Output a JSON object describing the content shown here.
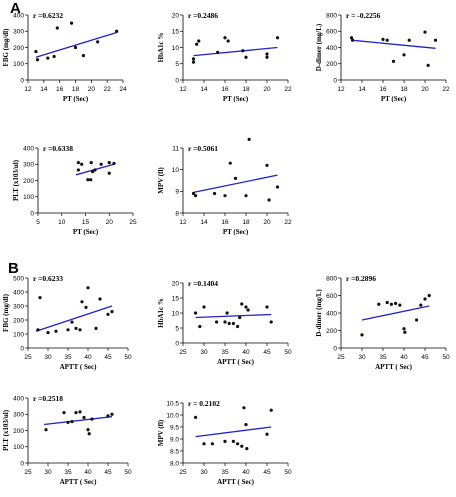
{
  "sections": [
    {
      "label": "A"
    },
    {
      "label": "B"
    }
  ],
  "style": {
    "line_color": "#2222cc",
    "point_color": "#111111",
    "axis_color": "#000000"
  },
  "chart_data": [
    {
      "type": "scatter",
      "section": "A",
      "r_label": "r =0.6232",
      "xlabel": "PT (Sec)",
      "ylabel": "FBG (mg/dl)",
      "xlim": [
        12,
        24
      ],
      "ylim": [
        0,
        400
      ],
      "xticks": [
        12,
        14,
        16,
        18,
        20,
        22,
        24
      ],
      "yticks": [
        0,
        100,
        200,
        300,
        400
      ],
      "points": [
        [
          13,
          175
        ],
        [
          13.2,
          125
        ],
        [
          14.5,
          135
        ],
        [
          15.3,
          145
        ],
        [
          15.7,
          320
        ],
        [
          17.5,
          350
        ],
        [
          18,
          200
        ],
        [
          19,
          150
        ],
        [
          20.8,
          235
        ],
        [
          23.2,
          300
        ]
      ],
      "fit": [
        [
          13,
          140
        ],
        [
          23.2,
          292
        ]
      ]
    },
    {
      "type": "scatter",
      "section": "A",
      "r_label": "r =0.2486",
      "xlabel": "PT (Sec)",
      "ylabel": "HbA1c %",
      "xlim": [
        12,
        22
      ],
      "ylim": [
        0,
        20
      ],
      "xticks": [
        12,
        14,
        16,
        18,
        20,
        22
      ],
      "yticks": [
        0,
        5,
        10,
        15,
        20
      ],
      "points": [
        [
          13,
          6.5
        ],
        [
          13,
          5.5
        ],
        [
          13.3,
          11
        ],
        [
          13.5,
          12
        ],
        [
          15.3,
          8.5
        ],
        [
          16,
          13
        ],
        [
          16.3,
          12
        ],
        [
          17.7,
          9
        ],
        [
          18,
          7
        ],
        [
          20,
          8
        ],
        [
          20,
          7
        ],
        [
          21,
          13
        ]
      ],
      "fit": [
        [
          13,
          7.5
        ],
        [
          21,
          10
        ]
      ]
    },
    {
      "type": "scatter",
      "section": "A",
      "r_label": "r = -0.2256",
      "xlabel": "PT (Sec)",
      "ylabel": "D-dimer (mg/L)",
      "xlim": [
        12,
        22
      ],
      "ylim": [
        0,
        800
      ],
      "xticks": [
        12,
        14,
        16,
        18,
        20,
        22
      ],
      "yticks": [
        0,
        200,
        400,
        600,
        800
      ],
      "points": [
        [
          13,
          520
        ],
        [
          13.1,
          490
        ],
        [
          16,
          500
        ],
        [
          16.4,
          490
        ],
        [
          17,
          230
        ],
        [
          18,
          310
        ],
        [
          18.5,
          490
        ],
        [
          20,
          590
        ],
        [
          20.3,
          180
        ],
        [
          21,
          490
        ]
      ],
      "fit": [
        [
          13,
          490
        ],
        [
          21,
          390
        ]
      ]
    },
    {
      "type": "scatter",
      "section": "A",
      "r_label": "r =0.6338",
      "xlabel": "PT (Sec)",
      "ylabel": "PLT (x103/ul)",
      "xlim": [
        5,
        25
      ],
      "ylim": [
        0,
        400
      ],
      "xticks": [
        5,
        10,
        15,
        20,
        25
      ],
      "yticks": [
        0,
        100,
        200,
        300,
        400
      ],
      "points": [
        [
          13.5,
          265
        ],
        [
          13.5,
          310
        ],
        [
          14.2,
          300
        ],
        [
          15.5,
          205
        ],
        [
          16.1,
          205
        ],
        [
          16.2,
          310
        ],
        [
          16.5,
          255
        ],
        [
          17,
          265
        ],
        [
          18.3,
          300
        ],
        [
          20,
          245
        ],
        [
          20,
          310
        ],
        [
          21,
          305
        ]
      ],
      "fit": [
        [
          13,
          235
        ],
        [
          21,
          300
        ]
      ]
    },
    {
      "type": "scatter",
      "section": "A",
      "r_label": "r =0.5061",
      "xlabel": "PT (Sec)",
      "ylabel": "MPV (fl)",
      "xlim": [
        12,
        22
      ],
      "ylim": [
        8,
        11
      ],
      "xticks": [
        12,
        14,
        16,
        18,
        20,
        22
      ],
      "yticks": [
        8,
        9,
        10,
        11
      ],
      "points": [
        [
          13,
          8.9
        ],
        [
          13.2,
          8.8
        ],
        [
          15,
          8.9
        ],
        [
          16,
          8.8
        ],
        [
          16.5,
          10.3
        ],
        [
          17,
          9.6
        ],
        [
          18,
          8.8
        ],
        [
          18.3,
          11.4
        ],
        [
          20,
          10.2
        ],
        [
          20.2,
          8.6
        ],
        [
          21,
          9.2
        ]
      ],
      "fit": [
        [
          13,
          8.95
        ],
        [
          21,
          9.75
        ]
      ]
    },
    {
      "type": "scatter",
      "section": "B",
      "r_label": "r =0.6233",
      "xlabel": "APTT ( Sec)",
      "ylabel": "FBG (mg/dl)",
      "xlim": [
        25,
        50
      ],
      "ylim": [
        0,
        500
      ],
      "xticks": [
        25,
        30,
        35,
        40,
        45,
        50
      ],
      "yticks": [
        0,
        100,
        200,
        300,
        400,
        500
      ],
      "points": [
        [
          27.5,
          130
        ],
        [
          28,
          360
        ],
        [
          30,
          110
        ],
        [
          32,
          120
        ],
        [
          35,
          130
        ],
        [
          36,
          185
        ],
        [
          37,
          140
        ],
        [
          38,
          130
        ],
        [
          38.5,
          330
        ],
        [
          39.5,
          290
        ],
        [
          40,
          430
        ],
        [
          42,
          140
        ],
        [
          43,
          350
        ],
        [
          45,
          240
        ],
        [
          46,
          260
        ]
      ],
      "fit": [
        [
          27,
          120
        ],
        [
          46,
          300
        ]
      ]
    },
    {
      "type": "scatter",
      "section": "B",
      "r_label": "r =0.1404",
      "xlabel": "APTT ( Sec)",
      "ylabel": "HbA1c %",
      "xlim": [
        25,
        50
      ],
      "ylim": [
        0,
        20
      ],
      "xticks": [
        25,
        30,
        35,
        40,
        45,
        50
      ],
      "yticks": [
        0,
        5,
        10,
        15,
        20
      ],
      "points": [
        [
          28,
          10
        ],
        [
          29,
          5.5
        ],
        [
          30,
          12
        ],
        [
          33,
          7
        ],
        [
          35,
          7
        ],
        [
          35.5,
          10
        ],
        [
          36,
          6.5
        ],
        [
          37,
          6.5
        ],
        [
          38,
          5.5
        ],
        [
          38.5,
          8.5
        ],
        [
          39,
          13
        ],
        [
          40,
          12
        ],
        [
          40.5,
          11
        ],
        [
          45,
          12
        ],
        [
          46,
          7
        ]
      ],
      "fit": [
        [
          28,
          8.5
        ],
        [
          46,
          9.5
        ]
      ]
    },
    {
      "type": "scatter",
      "section": "B",
      "r_label": "r =0.2896",
      "xlabel": "APTT ( Sec)",
      "ylabel": "D-dimer (mg/L)",
      "xlim": [
        25,
        50
      ],
      "ylim": [
        0,
        800
      ],
      "xticks": [
        25,
        30,
        35,
        40,
        45,
        50
      ],
      "yticks": [
        0,
        200,
        400,
        600,
        800
      ],
      "points": [
        [
          30,
          150
        ],
        [
          34,
          500
        ],
        [
          36,
          520
        ],
        [
          37,
          500
        ],
        [
          38,
          510
        ],
        [
          39,
          490
        ],
        [
          40,
          220
        ],
        [
          40.2,
          180
        ],
        [
          43,
          320
        ],
        [
          44,
          490
        ],
        [
          45,
          560
        ],
        [
          46,
          600
        ]
      ],
      "fit": [
        [
          30,
          320
        ],
        [
          46,
          480
        ]
      ]
    },
    {
      "type": "scatter",
      "section": "B",
      "r_label": "r =0.2518",
      "xlabel": "APTT ( Sec)",
      "ylabel": "PLT (x103/ul)",
      "xlim": [
        25,
        50
      ],
      "ylim": [
        0,
        400
      ],
      "xticks": [
        25,
        30,
        35,
        40,
        45,
        50
      ],
      "yticks": [
        0,
        100,
        200,
        300,
        400
      ],
      "points": [
        [
          29.5,
          205
        ],
        [
          34,
          310
        ],
        [
          35,
          250
        ],
        [
          36,
          255
        ],
        [
          37,
          310
        ],
        [
          38,
          315
        ],
        [
          39,
          280
        ],
        [
          40,
          205
        ],
        [
          40.3,
          180
        ],
        [
          41,
          270
        ],
        [
          45,
          290
        ],
        [
          46,
          300
        ]
      ],
      "fit": [
        [
          29,
          237
        ],
        [
          46,
          285
        ]
      ]
    },
    {
      "type": "scatter",
      "section": "B",
      "r_label": "r =  0.2102",
      "xlabel": "APTT ( Sec)",
      "ylabel": "MPV (fl)",
      "xlim": [
        25,
        50
      ],
      "ylim": [
        8.0,
        10.5
      ],
      "xticks": [
        25,
        30,
        35,
        40,
        45,
        50
      ],
      "yticks": [
        8.0,
        8.5,
        9.0,
        9.5,
        10.0,
        10.5
      ],
      "points": [
        [
          28,
          9.9
        ],
        [
          30,
          8.8
        ],
        [
          32,
          8.8
        ],
        [
          35,
          8.9
        ],
        [
          37,
          8.9
        ],
        [
          38,
          8.8
        ],
        [
          39,
          8.7
        ],
        [
          39.5,
          10.3
        ],
        [
          40,
          9.6
        ],
        [
          40.2,
          8.6
        ],
        [
          45,
          9.2
        ],
        [
          46,
          10.2
        ]
      ],
      "fit": [
        [
          28,
          9.1
        ],
        [
          46,
          9.5
        ]
      ]
    }
  ]
}
